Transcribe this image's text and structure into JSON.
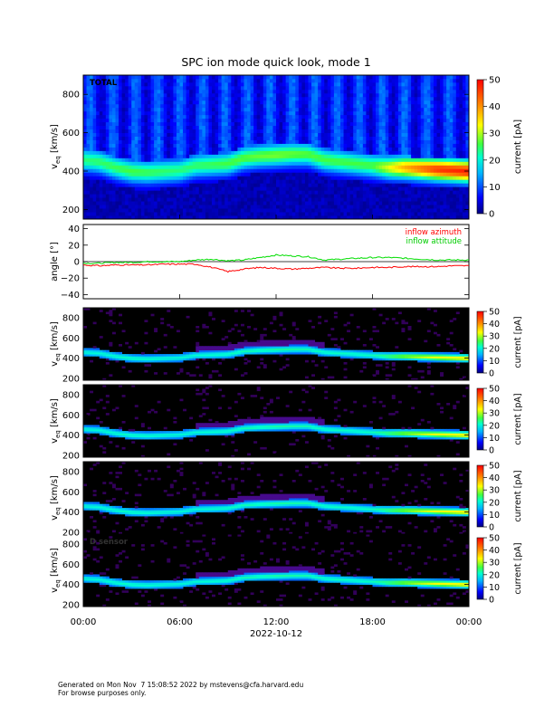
{
  "title": "SPC ion mode quick look, mode 1",
  "x_axis": {
    "tick_labels": [
      "00:00",
      "06:00",
      "12:00",
      "18:00",
      "00:00"
    ],
    "date_label": "2022-10-12"
  },
  "colorbar": {
    "label": "current [pA]",
    "ticks_main": [
      "0",
      "10",
      "20",
      "30",
      "40",
      "50"
    ],
    "ticks_small": [
      "0",
      "10",
      "20",
      "30",
      "40",
      "50"
    ]
  },
  "chart_data": [
    {
      "type": "heatmap",
      "panel": "total",
      "panel_label": "TOTAL",
      "x_range": [
        "2022-10-12 00:00",
        "2022-10-13 00:00"
      ],
      "ylabel": "v_eq [km/s]",
      "ylim": [
        150,
        900
      ],
      "y_ticks": [
        "200",
        "400",
        "600",
        "800"
      ],
      "z_label": "current [pA]",
      "zlim": [
        0,
        50
      ],
      "colormap": "rainbow",
      "peak_velocity_kms": [
        [
          0,
          460
        ],
        [
          1,
          450
        ],
        [
          2,
          420
        ],
        [
          3,
          400
        ],
        [
          4,
          395
        ],
        [
          5,
          400
        ],
        [
          6,
          405
        ],
        [
          7,
          430
        ],
        [
          8,
          435
        ],
        [
          9,
          440
        ],
        [
          10,
          470
        ],
        [
          11,
          480
        ],
        [
          12,
          485
        ],
        [
          13,
          490
        ],
        [
          14,
          490
        ],
        [
          15,
          460
        ],
        [
          16,
          450
        ],
        [
          17,
          440
        ],
        [
          18,
          430
        ],
        [
          19,
          420
        ],
        [
          20,
          420
        ],
        [
          21,
          415
        ],
        [
          22,
          410
        ],
        [
          23,
          405
        ],
        [
          24,
          400
        ]
      ],
      "peak_current_pA": [
        [
          0,
          20
        ],
        [
          3,
          22
        ],
        [
          6,
          20
        ],
        [
          9,
          22
        ],
        [
          12,
          24
        ],
        [
          15,
          22
        ],
        [
          18,
          22
        ],
        [
          20,
          34
        ],
        [
          22,
          42
        ],
        [
          24,
          44
        ]
      ]
    },
    {
      "type": "line",
      "panel": "angle",
      "x_range": [
        "2022-10-12 00:00",
        "2022-10-13 00:00"
      ],
      "ylabel": "angle [°]",
      "ylim": [
        -45,
        45
      ],
      "y_ticks": [
        "40",
        "20",
        "0",
        "−20",
        "−40"
      ],
      "series": [
        {
          "name": "inflow azimuth",
          "color": "#ff0000",
          "points": [
            [
              0,
              -4
            ],
            [
              1,
              -5
            ],
            [
              2,
              -4
            ],
            [
              3,
              -4
            ],
            [
              4,
              -4
            ],
            [
              5,
              -3
            ],
            [
              6,
              -3
            ],
            [
              7,
              -3
            ],
            [
              8,
              -7
            ],
            [
              9,
              -12
            ],
            [
              10,
              -9
            ],
            [
              11,
              -7
            ],
            [
              12,
              -8
            ],
            [
              13,
              -9
            ],
            [
              14,
              -8
            ],
            [
              15,
              -7
            ],
            [
              16,
              -8
            ],
            [
              17,
              -8
            ],
            [
              18,
              -7
            ],
            [
              19,
              -7
            ],
            [
              20,
              -6
            ],
            [
              21,
              -6
            ],
            [
              22,
              -6
            ],
            [
              23,
              -5
            ],
            [
              24,
              -5
            ]
          ]
        },
        {
          "name": "inflow attitude",
          "color": "#00dd00",
          "points": [
            [
              0,
              -2
            ],
            [
              1,
              -2
            ],
            [
              2,
              -1
            ],
            [
              3,
              -1
            ],
            [
              4,
              0
            ],
            [
              5,
              0
            ],
            [
              6,
              0
            ],
            [
              7,
              2
            ],
            [
              8,
              3
            ],
            [
              9,
              1
            ],
            [
              10,
              2
            ],
            [
              11,
              5
            ],
            [
              12,
              8
            ],
            [
              13,
              7
            ],
            [
              14,
              6
            ],
            [
              15,
              2
            ],
            [
              16,
              3
            ],
            [
              17,
              4
            ],
            [
              18,
              5
            ],
            [
              19,
              5
            ],
            [
              20,
              4
            ],
            [
              21,
              3
            ],
            [
              22,
              2
            ],
            [
              23,
              2
            ],
            [
              24,
              2
            ]
          ]
        }
      ]
    },
    {
      "type": "heatmap",
      "panel": "sensor-A",
      "panel_label": "",
      "x_range": [
        "2022-10-12 00:00",
        "2022-10-13 00:00"
      ],
      "ylabel": "v_eq [km/s]",
      "ylim": [
        180,
        900
      ],
      "y_ticks": [
        "200",
        "400",
        "600",
        "800"
      ],
      "z_label": "current [pA]",
      "zlim": [
        0,
        50
      ],
      "colormap": "rainbow"
    },
    {
      "type": "heatmap",
      "panel": "sensor-B",
      "panel_label": "",
      "x_range": [
        "2022-10-12 00:00",
        "2022-10-13 00:00"
      ],
      "ylabel": "v_eq [km/s]",
      "ylim": [
        180,
        900
      ],
      "y_ticks": [
        "200",
        "400",
        "600",
        "800"
      ],
      "z_label": "current [pA]",
      "zlim": [
        0,
        50
      ],
      "colormap": "rainbow"
    },
    {
      "type": "heatmap",
      "panel": "sensor-C",
      "panel_label": "",
      "x_range": [
        "2022-10-12 00:00",
        "2022-10-13 00:00"
      ],
      "ylabel": "v_eq [km/s]",
      "ylim": [
        180,
        900
      ],
      "y_ticks": [
        "200",
        "400",
        "600",
        "800"
      ],
      "z_label": "current [pA]",
      "zlim": [
        0,
        50
      ],
      "colormap": "rainbow"
    },
    {
      "type": "heatmap",
      "panel": "sensor-D",
      "panel_label": "D sensor",
      "x_range": [
        "2022-10-12 00:00",
        "2022-10-13 00:00"
      ],
      "ylabel": "v_eq [km/s]",
      "ylim": [
        180,
        900
      ],
      "y_ticks": [
        "200",
        "400",
        "600",
        "800"
      ],
      "z_label": "current [pA]",
      "zlim": [
        0,
        50
      ],
      "colormap": "rainbow"
    }
  ],
  "footer": {
    "line1": "Generated on Mon Nov  7 15:08:52 2022 by mstevens@cfa.harvard.edu",
    "line2": "For browse purposes only."
  }
}
